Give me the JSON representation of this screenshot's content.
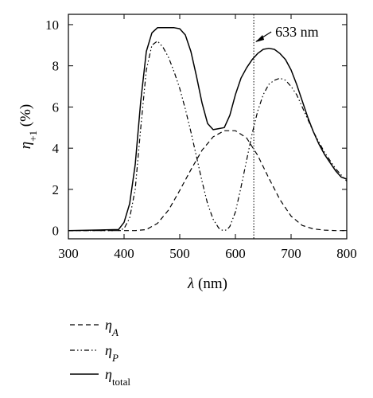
{
  "chart_data": {
    "type": "line",
    "title": "",
    "xlabel": {
      "symbol": "λ",
      "unit": " (nm)"
    },
    "ylabel": {
      "symbol": "η",
      "subscript": "+1",
      "unit": " (%)"
    },
    "xlim": [
      300,
      800
    ],
    "ylim": [
      -0.4,
      10.5
    ],
    "xticks": [
      300,
      400,
      500,
      600,
      700,
      800
    ],
    "yticks": [
      0,
      2,
      4,
      6,
      8,
      10
    ],
    "grid": false,
    "legend_position": "below",
    "annotation": {
      "x": 633,
      "label": "633 nm"
    },
    "series": [
      {
        "name": "η_A",
        "legend": {
          "symbol": "η",
          "subscript": "A"
        },
        "style": "dashed",
        "x": [
          300,
          400,
          420,
          440,
          460,
          480,
          500,
          520,
          540,
          560,
          580,
          600,
          620,
          640,
          660,
          680,
          700,
          720,
          740,
          760,
          780,
          800
        ],
        "y": [
          0,
          0,
          0,
          0.05,
          0.35,
          1.0,
          1.95,
          2.95,
          3.9,
          4.55,
          4.85,
          4.85,
          4.5,
          3.65,
          2.55,
          1.5,
          0.7,
          0.25,
          0.08,
          0.02,
          0,
          0
        ]
      },
      {
        "name": "η_P",
        "legend": {
          "symbol": "η",
          "subscript": "P"
        },
        "style": "dash-dot-dot",
        "x": [
          300,
          390,
          400,
          410,
          420,
          430,
          440,
          450,
          460,
          470,
          480,
          490,
          500,
          510,
          520,
          530,
          540,
          550,
          560,
          570,
          575,
          580,
          585,
          590,
          600,
          610,
          620,
          630,
          640,
          650,
          660,
          670,
          680,
          690,
          700,
          710,
          720,
          730,
          740,
          750,
          760,
          770,
          780,
          790,
          800
        ],
        "y": [
          0,
          0,
          0.1,
          0.6,
          2.0,
          5.0,
          7.8,
          9.0,
          9.2,
          8.9,
          8.4,
          7.7,
          6.9,
          5.9,
          4.8,
          3.6,
          2.4,
          1.3,
          0.55,
          0.12,
          0.03,
          0,
          0.05,
          0.2,
          0.9,
          2.1,
          3.4,
          4.7,
          5.8,
          6.6,
          7.1,
          7.3,
          7.4,
          7.3,
          7.0,
          6.6,
          6.0,
          5.4,
          4.8,
          4.3,
          3.8,
          3.4,
          3.0,
          2.7,
          2.4
        ]
      },
      {
        "name": "η_total",
        "legend": {
          "symbol": "η",
          "subscript": "total"
        },
        "style": "solid",
        "x": [
          300,
          390,
          400,
          410,
          420,
          430,
          440,
          450,
          460,
          470,
          480,
          490,
          500,
          510,
          520,
          530,
          540,
          550,
          560,
          570,
          580,
          590,
          600,
          610,
          620,
          630,
          640,
          650,
          660,
          670,
          680,
          690,
          700,
          710,
          720,
          730,
          740,
          750,
          760,
          770,
          780,
          790,
          800
        ],
        "y": [
          0,
          0.05,
          0.4,
          1.3,
          3.2,
          6.3,
          8.7,
          9.6,
          9.85,
          9.85,
          9.85,
          9.85,
          9.8,
          9.5,
          8.7,
          7.5,
          6.2,
          5.2,
          4.9,
          4.95,
          5.0,
          5.6,
          6.6,
          7.4,
          7.9,
          8.3,
          8.6,
          8.8,
          8.85,
          8.8,
          8.6,
          8.3,
          7.8,
          7.1,
          6.3,
          5.5,
          4.8,
          4.2,
          3.7,
          3.3,
          2.9,
          2.6,
          2.5
        ]
      }
    ]
  }
}
